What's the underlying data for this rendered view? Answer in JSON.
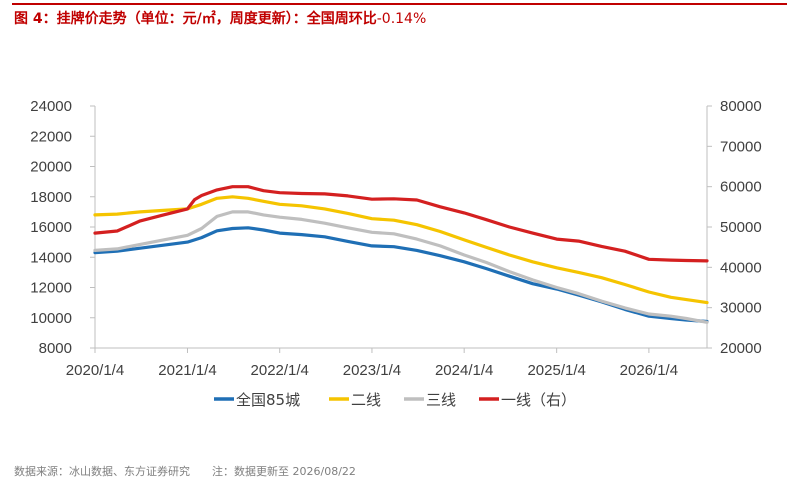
{
  "header": {
    "title": "图 4：挂牌价走势（单位：元/㎡，周度更新）：全国周环比",
    "title_suffix": "-0.14%"
  },
  "footer": {
    "source": "数据来源：冰山数据、东方证券研究",
    "note": "注：数据更新至 2026/08/22"
  },
  "chart_data": {
    "type": "line",
    "x_start": "2020/1/4",
    "x_end": "2026/8/22",
    "x_ticks": [
      "2020/1/4",
      "2021/1/4",
      "2022/1/4",
      "2023/1/4",
      "2024/1/4",
      "2025/1/4",
      "2026/1/4"
    ],
    "y_left": {
      "ylim": [
        8000,
        24000
      ],
      "ticks": [
        "8000",
        "10000",
        "12000",
        "14000",
        "16000",
        "18000",
        "20000",
        "22000",
        "24000"
      ]
    },
    "y_right": {
      "ylim": [
        20000,
        80000
      ],
      "ticks": [
        "20000",
        "30000",
        "40000",
        "50000",
        "60000",
        "70000",
        "80000"
      ]
    },
    "grid": false,
    "legend_position": "bottom",
    "series": [
      {
        "name": "全国85城",
        "axis": "left",
        "color": "#1f6fb5",
        "x": [
          "2020/1/4",
          "2020/4/1",
          "2020/7/1",
          "2020/10/1",
          "2021/1/4",
          "2021/3/1",
          "2021/5/1",
          "2021/7/1",
          "2021/9/1",
          "2021/11/1",
          "2022/1/4",
          "2022/4/1",
          "2022/7/1",
          "2022/10/1",
          "2023/1/4",
          "2023/4/1",
          "2023/7/1",
          "2023/10/1",
          "2024/1/4",
          "2024/4/1",
          "2024/7/1",
          "2024/10/1",
          "2025/1/4",
          "2025/4/1",
          "2025/7/1",
          "2025/10/1",
          "2026/1/4",
          "2026/4/1",
          "2026/6/1",
          "2026/8/22"
        ],
        "values": [
          14300,
          14400,
          14600,
          14800,
          15000,
          15300,
          15750,
          15900,
          15950,
          15800,
          15600,
          15500,
          15350,
          15050,
          14750,
          14700,
          14450,
          14100,
          13700,
          13250,
          12750,
          12250,
          11900,
          11500,
          11050,
          10550,
          10100,
          9950,
          9850,
          9750
        ]
      },
      {
        "name": "二线",
        "axis": "left",
        "color": "#f5c400",
        "x": [
          "2020/1/4",
          "2020/4/1",
          "2020/7/1",
          "2020/10/1",
          "2021/1/4",
          "2021/3/1",
          "2021/5/1",
          "2021/7/1",
          "2021/9/1",
          "2021/11/1",
          "2022/1/4",
          "2022/4/1",
          "2022/7/1",
          "2022/10/1",
          "2023/1/4",
          "2023/4/1",
          "2023/7/1",
          "2023/10/1",
          "2024/1/4",
          "2024/4/1",
          "2024/7/1",
          "2024/10/1",
          "2025/1/4",
          "2025/4/1",
          "2025/7/1",
          "2025/10/1",
          "2026/1/4",
          "2026/4/1",
          "2026/6/1",
          "2026/8/22"
        ],
        "values": [
          16800,
          16850,
          17000,
          17100,
          17200,
          17500,
          17900,
          18000,
          17900,
          17700,
          17500,
          17400,
          17200,
          16900,
          16550,
          16450,
          16150,
          15700,
          15150,
          14650,
          14150,
          13700,
          13300,
          13000,
          12650,
          12200,
          11700,
          11350,
          11200,
          11000
        ]
      },
      {
        "name": "三线",
        "axis": "left",
        "color": "#bfbfbf",
        "x": [
          "2020/1/4",
          "2020/4/1",
          "2020/7/1",
          "2020/10/1",
          "2021/1/4",
          "2021/3/1",
          "2021/5/1",
          "2021/7/1",
          "2021/9/1",
          "2021/11/1",
          "2022/1/4",
          "2022/4/1",
          "2022/7/1",
          "2022/10/1",
          "2023/1/4",
          "2023/4/1",
          "2023/7/1",
          "2023/10/1",
          "2024/1/4",
          "2024/4/1",
          "2024/7/1",
          "2024/10/1",
          "2025/1/4",
          "2025/4/1",
          "2025/7/1",
          "2025/10/1",
          "2026/1/4",
          "2026/4/1",
          "2026/6/1",
          "2026/8/22"
        ],
        "values": [
          14450,
          14550,
          14850,
          15150,
          15450,
          15900,
          16700,
          17000,
          17000,
          16800,
          16650,
          16500,
          16250,
          15950,
          15650,
          15550,
          15200,
          14750,
          14150,
          13650,
          13050,
          12500,
          12000,
          11600,
          11100,
          10650,
          10250,
          10100,
          9950,
          9700
        ]
      },
      {
        "name": "一线（右）",
        "axis": "right",
        "color": "#d42020",
        "x": [
          "2020/1/4",
          "2020/4/1",
          "2020/7/1",
          "2020/10/1",
          "2021/1/4",
          "2021/2/1",
          "2021/3/1",
          "2021/5/1",
          "2021/7/1",
          "2021/9/1",
          "2021/11/1",
          "2022/1/4",
          "2022/4/1",
          "2022/7/1",
          "2022/10/1",
          "2023/1/4",
          "2023/4/1",
          "2023/7/1",
          "2023/10/1",
          "2024/1/4",
          "2024/4/1",
          "2024/7/1",
          "2024/10/1",
          "2025/1/4",
          "2025/4/1",
          "2025/7/1",
          "2025/10/1",
          "2026/1/4",
          "2026/4/1",
          "2026/6/1",
          "2026/8/22"
        ],
        "values": [
          48500,
          49000,
          51500,
          53000,
          54500,
          56800,
          57800,
          59200,
          60000,
          60000,
          59000,
          58500,
          58300,
          58200,
          57700,
          56900,
          57000,
          56700,
          55000,
          53500,
          51800,
          50000,
          48500,
          47000,
          46500,
          45200,
          44000,
          42000,
          41800,
          41700,
          41600
        ]
      }
    ]
  }
}
